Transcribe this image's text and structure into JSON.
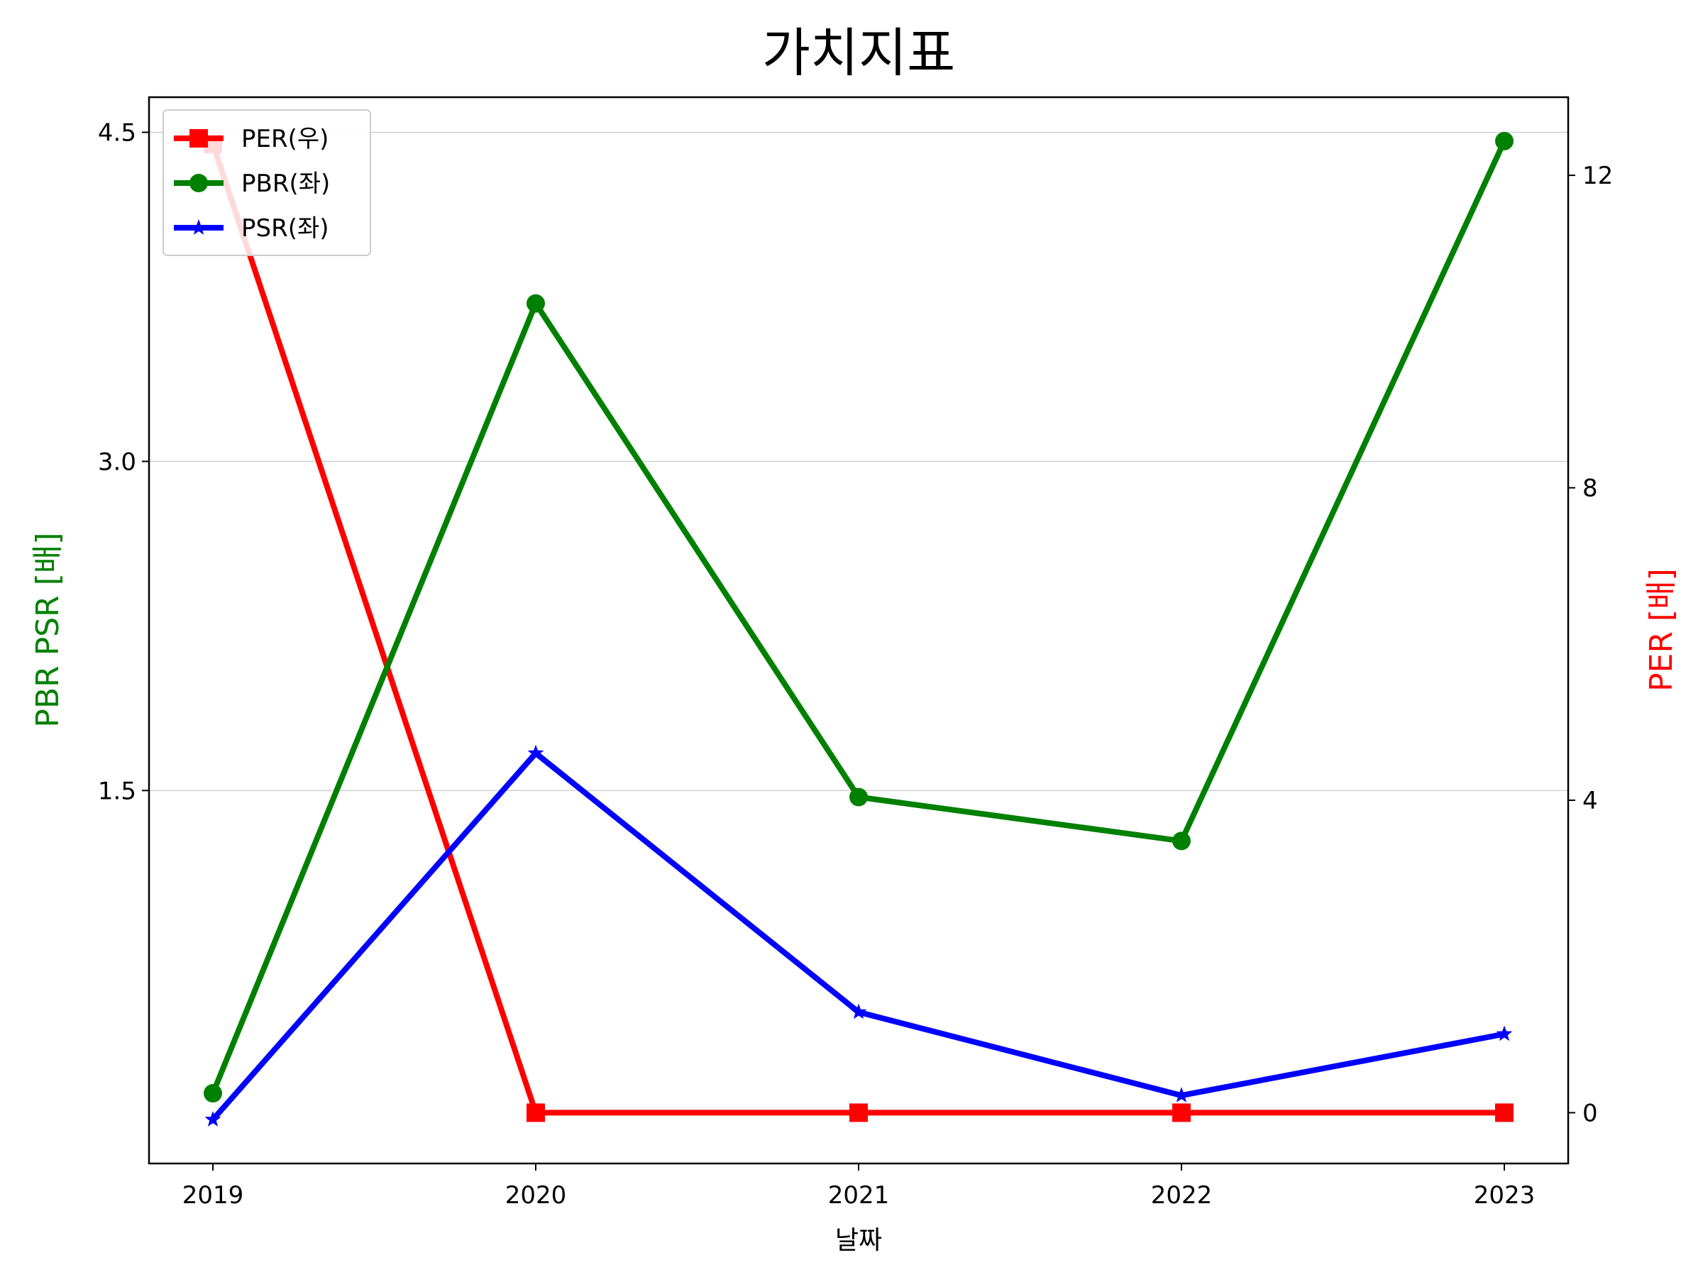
{
  "chart_data": {
    "type": "line",
    "title": "가치지표",
    "xlabel": "날짜",
    "ylabel_left": "PBR PSR [배]",
    "ylabel_right": "PER [배]",
    "categories": [
      "2019",
      "2020",
      "2021",
      "2022",
      "2023"
    ],
    "left_ylim": [
      -0.2,
      4.66
    ],
    "left_yticks": [
      "1.5",
      "3.0",
      "4.5"
    ],
    "right_ylim": [
      -0.65,
      13.0
    ],
    "right_yticks": [
      "0",
      "4",
      "8",
      "12"
    ],
    "grid": "horizontal-left",
    "legend_position": "top-left",
    "series": [
      {
        "name": "PER(우)",
        "axis": "right",
        "color": "#ff0000",
        "marker": "square",
        "values": [
          12.4,
          0,
          0,
          0,
          0
        ]
      },
      {
        "name": "PBR(좌)",
        "axis": "left",
        "color": "#008000",
        "marker": "circle",
        "values": [
          0.12,
          3.72,
          1.47,
          1.27,
          4.46
        ]
      },
      {
        "name": "PSR(좌)",
        "axis": "left",
        "color": "#0000ff",
        "marker": "star",
        "values": [
          0.0,
          1.67,
          0.49,
          0.11,
          0.39
        ]
      }
    ]
  }
}
